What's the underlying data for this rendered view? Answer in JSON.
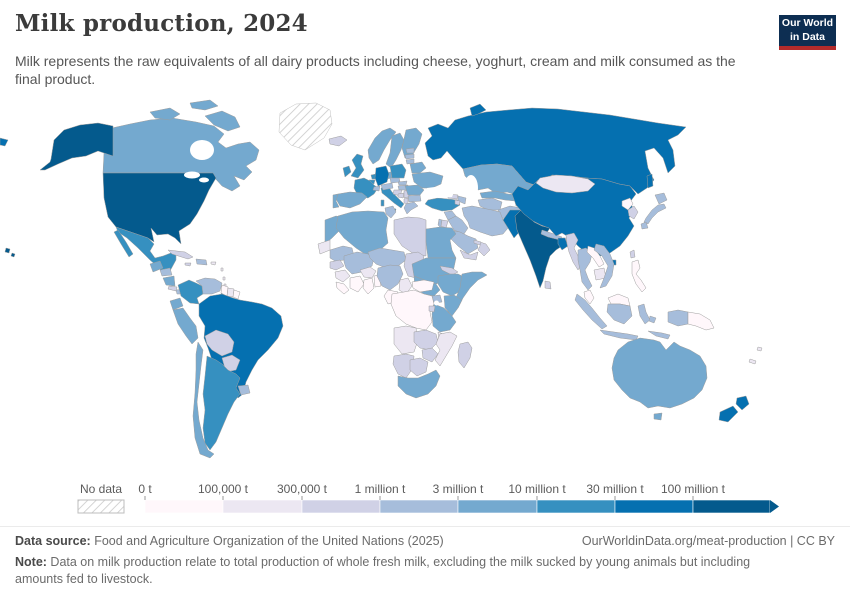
{
  "header": {
    "title": "Milk production, 2024",
    "subtitle": "Milk represents the raw equivalents of all dairy products including cheese, yoghurt, cream and milk consumed as the final product.",
    "logo": {
      "line1": "Our World",
      "line2": "in Data",
      "bg_color": "#0d2e52",
      "accent_color": "#b22b2b"
    }
  },
  "legend": {
    "no_data_label": "No data",
    "tick_labels": [
      "0 t",
      "100,000 t",
      "300,000 t",
      "1 million t",
      "3 million t",
      "10 million t",
      "30 million t",
      "100 million t"
    ]
  },
  "footer": {
    "source_label": "Data source:",
    "source_text": " Food and Agriculture Organization of the United Nations (2025)",
    "link_text": "OurWorldinData.org/meat-production | CC BY",
    "note_label": "Note:",
    "note_text": " Data on milk production relate to total production of whole fresh milk, excluding the milk sucked by young animals but including amounts fed to livestock."
  },
  "chart_data": {
    "type": "choropleth_map",
    "title": "Milk production, 2024",
    "unit": "tonnes",
    "year": 2024,
    "bin_colors": [
      "#fff7fb",
      "#ece7f2",
      "#d0d1e6",
      "#a6bddb",
      "#74a9cf",
      "#3690c0",
      "#0570b0",
      "#045a8d"
    ],
    "bin_edges": [
      "0 t",
      "100,000 t",
      "300,000 t",
      "1 million t",
      "3 million t",
      "10 million t",
      "30 million t",
      "100 million t"
    ],
    "no_data_color": "hatched",
    "countries": [
      {
        "id": "canada",
        "name": "Canada",
        "bin": 4
      },
      {
        "id": "united-states",
        "name": "United States",
        "bin": 7
      },
      {
        "id": "greenland",
        "name": "Greenland",
        "bin": -1
      },
      {
        "id": "iceland",
        "name": "Iceland",
        "bin": 2
      },
      {
        "id": "mexico",
        "name": "Mexico",
        "bin": 5
      },
      {
        "id": "guatemala",
        "name": "Guatemala",
        "bin": 4
      },
      {
        "id": "honduras",
        "name": "Honduras",
        "bin": 3
      },
      {
        "id": "nicaragua",
        "name": "Nicaragua",
        "bin": 4
      },
      {
        "id": "costa-rica",
        "name": "Costa Rica",
        "bin": 2
      },
      {
        "id": "panama",
        "name": "Panama",
        "bin": 3
      },
      {
        "id": "cuba",
        "name": "Cuba",
        "bin": 2
      },
      {
        "id": "jamaica",
        "name": "Jamaica",
        "bin": 2
      },
      {
        "id": "hispaniola",
        "name": "Dominican Republic / Haiti",
        "bin": 3
      },
      {
        "id": "puerto-rico",
        "name": "Puerto Rico",
        "bin": 1
      },
      {
        "id": "lesser-antilles",
        "name": "Lesser Antilles",
        "bin": 1
      },
      {
        "id": "trinidad",
        "name": "Trinidad and Tobago",
        "bin": 5
      },
      {
        "id": "colombia",
        "name": "Colombia",
        "bin": 5
      },
      {
        "id": "venezuela",
        "name": "Venezuela",
        "bin": 3
      },
      {
        "id": "guyana",
        "name": "Guyana",
        "bin": 0
      },
      {
        "id": "suriname",
        "name": "Suriname",
        "bin": 1
      },
      {
        "id": "french-guiana",
        "name": "French Guiana",
        "bin": 0
      },
      {
        "id": "ecuador",
        "name": "Ecuador",
        "bin": 4
      },
      {
        "id": "peru",
        "name": "Peru",
        "bin": 4
      },
      {
        "id": "brazil",
        "name": "Brazil",
        "bin": 6
      },
      {
        "id": "bolivia",
        "name": "Bolivia",
        "bin": 2
      },
      {
        "id": "paraguay",
        "name": "Paraguay",
        "bin": 2
      },
      {
        "id": "chile",
        "name": "Chile",
        "bin": 4
      },
      {
        "id": "argentina",
        "name": "Argentina",
        "bin": 5
      },
      {
        "id": "uruguay",
        "name": "Uruguay",
        "bin": 3
      },
      {
        "id": "norway",
        "name": "Norway",
        "bin": 4
      },
      {
        "id": "sweden",
        "name": "Sweden",
        "bin": 4
      },
      {
        "id": "finland",
        "name": "Finland",
        "bin": 4
      },
      {
        "id": "denmark",
        "name": "Denmark",
        "bin": 4
      },
      {
        "id": "united-kingdom",
        "name": "United Kingdom",
        "bin": 5
      },
      {
        "id": "ireland",
        "name": "Ireland",
        "bin": 5
      },
      {
        "id": "netherlands",
        "name": "Netherlands",
        "bin": 5
      },
      {
        "id": "belgium",
        "name": "Belgium",
        "bin": 5
      },
      {
        "id": "germany",
        "name": "Germany",
        "bin": 6
      },
      {
        "id": "france",
        "name": "France",
        "bin": 5
      },
      {
        "id": "spain",
        "name": "Spain",
        "bin": 4
      },
      {
        "id": "portugal",
        "name": "Portugal",
        "bin": 4
      },
      {
        "id": "italy",
        "name": "Italy",
        "bin": 5
      },
      {
        "id": "switzerland",
        "name": "Switzerland",
        "bin": 3
      },
      {
        "id": "austria",
        "name": "Austria",
        "bin": 3
      },
      {
        "id": "czechia",
        "name": "Czechia",
        "bin": 3
      },
      {
        "id": "poland",
        "name": "Poland",
        "bin": 5
      },
      {
        "id": "slovakia",
        "name": "Slovakia",
        "bin": 3
      },
      {
        "id": "hungary",
        "name": "Hungary",
        "bin": 3
      },
      {
        "id": "slovenia-croatia",
        "name": "Slovenia / Croatia",
        "bin": 2
      },
      {
        "id": "bosnia",
        "name": "Bosnia and Herzegovina",
        "bin": 2
      },
      {
        "id": "serbia",
        "name": "Serbia",
        "bin": 2
      },
      {
        "id": "albania",
        "name": "Albania",
        "bin": 2
      },
      {
        "id": "greece",
        "name": "Greece",
        "bin": 3
      },
      {
        "id": "bulgaria",
        "name": "Bulgaria",
        "bin": 3
      },
      {
        "id": "romania",
        "name": "Romania",
        "bin": 4
      },
      {
        "id": "moldova",
        "name": "Moldova",
        "bin": 2
      },
      {
        "id": "ukraine",
        "name": "Ukraine",
        "bin": 4
      },
      {
        "id": "belarus",
        "name": "Belarus",
        "bin": 4
      },
      {
        "id": "estonia",
        "name": "Estonia",
        "bin": 3
      },
      {
        "id": "latvia",
        "name": "Latvia",
        "bin": 3
      },
      {
        "id": "lithuania",
        "name": "Lithuania",
        "bin": 3
      },
      {
        "id": "russia",
        "name": "Russia",
        "bin": 6
      },
      {
        "id": "kazakhstan",
        "name": "Kazakhstan",
        "bin": 4
      },
      {
        "id": "uzbekistan",
        "name": "Uzbekistan",
        "bin": 4
      },
      {
        "id": "turkmenistan",
        "name": "Turkmenistan",
        "bin": 3
      },
      {
        "id": "kyrgyzstan",
        "name": "Kyrgyzstan",
        "bin": 3
      },
      {
        "id": "tajikistan",
        "name": "Tajikistan",
        "bin": 2
      },
      {
        "id": "afghanistan",
        "name": "Afghanistan",
        "bin": 3
      },
      {
        "id": "turkey",
        "name": "Turkey",
        "bin": 5
      },
      {
        "id": "georgia",
        "name": "Georgia",
        "bin": 2
      },
      {
        "id": "azerbaijan",
        "name": "Azerbaijan",
        "bin": 3
      },
      {
        "id": "armenia",
        "name": "Armenia",
        "bin": 2
      },
      {
        "id": "syria",
        "name": "Syria",
        "bin": 3
      },
      {
        "id": "iraq",
        "name": "Iraq",
        "bin": 3
      },
      {
        "id": "iran",
        "name": "Iran",
        "bin": 3
      },
      {
        "id": "israel",
        "name": "Israel",
        "bin": 3
      },
      {
        "id": "jordan",
        "name": "Jordan",
        "bin": 2
      },
      {
        "id": "saudi-arabia",
        "name": "Saudi Arabia",
        "bin": 3
      },
      {
        "id": "yemen",
        "name": "Yemen",
        "bin": 2
      },
      {
        "id": "oman",
        "name": "Oman",
        "bin": 2
      },
      {
        "id": "uae",
        "name": "United Arab Emirates",
        "bin": 2
      },
      {
        "id": "pakistan",
        "name": "Pakistan",
        "bin": 6
      },
      {
        "id": "india",
        "name": "India",
        "bin": 7
      },
      {
        "id": "nepal",
        "name": "Nepal",
        "bin": 3
      },
      {
        "id": "bhutan",
        "name": "Bhutan",
        "bin": 2
      },
      {
        "id": "bangladesh",
        "name": "Bangladesh",
        "bin": 6
      },
      {
        "id": "sri-lanka",
        "name": "Sri Lanka",
        "bin": 2
      },
      {
        "id": "china",
        "name": "China",
        "bin": 6
      },
      {
        "id": "mongolia",
        "name": "Mongolia",
        "bin": 1
      },
      {
        "id": "north-korea",
        "name": "North Korea",
        "bin": 0
      },
      {
        "id": "south-korea",
        "name": "South Korea",
        "bin": 2
      },
      {
        "id": "japan",
        "name": "Japan",
        "bin": 3
      },
      {
        "id": "taiwan",
        "name": "Taiwan",
        "bin": 2
      },
      {
        "id": "myanmar",
        "name": "Myanmar",
        "bin": 2
      },
      {
        "id": "thailand",
        "name": "Thailand",
        "bin": 3
      },
      {
        "id": "laos",
        "name": "Laos",
        "bin": 0
      },
      {
        "id": "cambodia",
        "name": "Cambodia",
        "bin": 1
      },
      {
        "id": "vietnam",
        "name": "Vietnam",
        "bin": 3
      },
      {
        "id": "malaysia",
        "name": "Malaysia",
        "bin": 0
      },
      {
        "id": "indonesia",
        "name": "Indonesia",
        "bin": 3
      },
      {
        "id": "philippines",
        "name": "Philippines",
        "bin": 0
      },
      {
        "id": "papua-new-guinea",
        "name": "Papua New Guinea",
        "bin": 0
      },
      {
        "id": "australia",
        "name": "Australia",
        "bin": 4
      },
      {
        "id": "new-zealand",
        "name": "New Zealand",
        "bin": 6
      },
      {
        "id": "fiji",
        "name": "Fiji",
        "bin": 1
      },
      {
        "id": "new-caledonia",
        "name": "New Caledonia",
        "bin": 1
      },
      {
        "id": "morocco",
        "name": "Morocco",
        "bin": 4
      },
      {
        "id": "western-sahara",
        "name": "Western Sahara",
        "bin": 1
      },
      {
        "id": "algeria",
        "name": "Algeria",
        "bin": 4
      },
      {
        "id": "tunisia",
        "name": "Tunisia",
        "bin": 3
      },
      {
        "id": "libya",
        "name": "Libya",
        "bin": 2
      },
      {
        "id": "egypt",
        "name": "Egypt",
        "bin": 4
      },
      {
        "id": "mauritania",
        "name": "Mauritania",
        "bin": 3
      },
      {
        "id": "mali",
        "name": "Mali",
        "bin": 3
      },
      {
        "id": "niger",
        "name": "Niger",
        "bin": 3
      },
      {
        "id": "chad",
        "name": "Chad",
        "bin": 2
      },
      {
        "id": "sudan",
        "name": "Sudan",
        "bin": 4
      },
      {
        "id": "eritrea",
        "name": "Eritrea",
        "bin": 2
      },
      {
        "id": "ethiopia",
        "name": "Ethiopia",
        "bin": 4
      },
      {
        "id": "somalia",
        "name": "Somalia",
        "bin": 4
      },
      {
        "id": "south-sudan",
        "name": "South Sudan",
        "bin": 4
      },
      {
        "id": "senegal",
        "name": "Senegal",
        "bin": 2
      },
      {
        "id": "guinea",
        "name": "Guinea",
        "bin": 1
      },
      {
        "id": "sierra-leone-liberia",
        "name": "Sierra Leone / Liberia",
        "bin": 0
      },
      {
        "id": "ivory-coast",
        "name": "Cote d'Ivoire",
        "bin": 0
      },
      {
        "id": "ghana",
        "name": "Ghana",
        "bin": 0
      },
      {
        "id": "burkina-faso",
        "name": "Burkina Faso",
        "bin": 1
      },
      {
        "id": "benin-togo",
        "name": "Benin / Togo",
        "bin": 0
      },
      {
        "id": "nigeria",
        "name": "Nigeria",
        "bin": 3
      },
      {
        "id": "cameroon",
        "name": "Cameroon",
        "bin": 1
      },
      {
        "id": "central-african-republic",
        "name": "Central African Republic",
        "bin": 0
      },
      {
        "id": "congo-gabon",
        "name": "Congo / Gabon",
        "bin": 0
      },
      {
        "id": "drc",
        "name": "Democratic Republic of Congo",
        "bin": 0
      },
      {
        "id": "uganda",
        "name": "Uganda",
        "bin": 3
      },
      {
        "id": "kenya",
        "name": "Kenya",
        "bin": 4
      },
      {
        "id": "tanzania",
        "name": "Tanzania",
        "bin": 4
      },
      {
        "id": "rwanda-burundi",
        "name": "Rwanda / Burundi",
        "bin": 2
      },
      {
        "id": "angola",
        "name": "Angola",
        "bin": 1
      },
      {
        "id": "zambia",
        "name": "Zambia",
        "bin": 2
      },
      {
        "id": "malawi",
        "name": "Malawi",
        "bin": 1
      },
      {
        "id": "mozambique",
        "name": "Mozambique",
        "bin": 1
      },
      {
        "id": "zimbabwe",
        "name": "Zimbabwe",
        "bin": 2
      },
      {
        "id": "namibia",
        "name": "Namibia",
        "bin": 2
      },
      {
        "id": "botswana",
        "name": "Botswana",
        "bin": 2
      },
      {
        "id": "south-africa",
        "name": "South Africa",
        "bin": 4
      },
      {
        "id": "madagascar",
        "name": "Madagascar",
        "bin": 2
      }
    ]
  }
}
